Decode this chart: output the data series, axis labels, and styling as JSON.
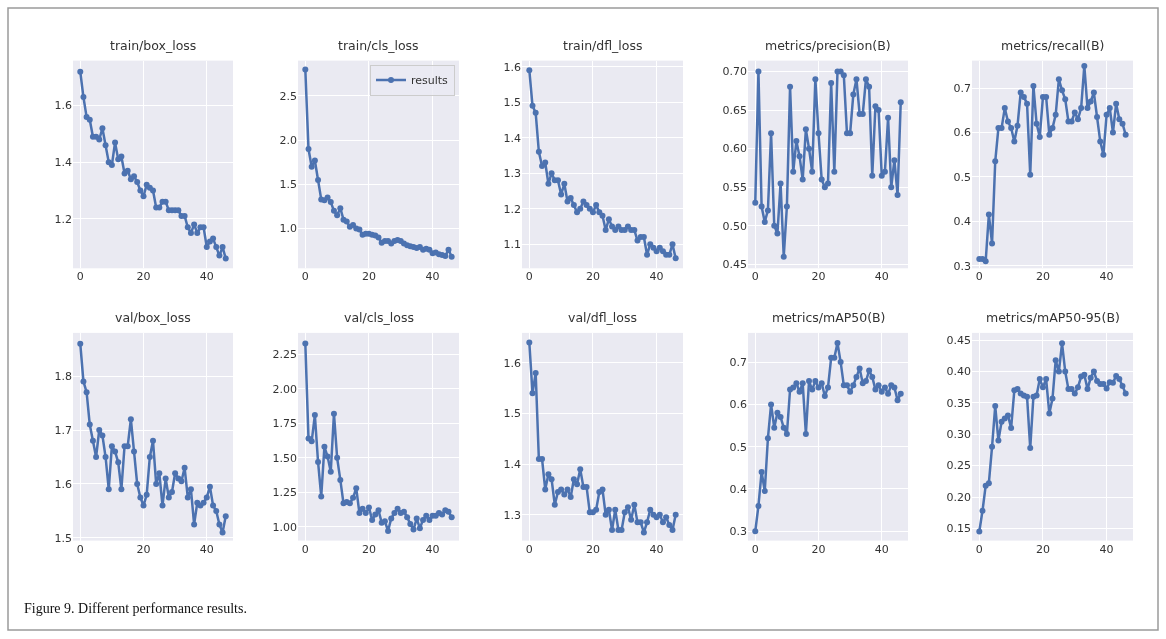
{
  "chart_data": [
    {
      "type": "line",
      "title": "train/box_loss",
      "x": [
        0,
        1,
        2,
        3,
        4,
        5,
        6,
        7,
        8,
        9,
        10,
        11,
        12,
        13,
        14,
        15,
        16,
        17,
        18,
        19,
        20,
        21,
        22,
        23,
        24,
        25,
        26,
        27,
        28,
        29,
        30,
        31,
        32,
        33,
        34,
        35,
        36,
        37,
        38,
        39,
        40,
        41,
        42,
        43,
        44,
        45,
        46
      ],
      "series": [
        {
          "color": "#4c72b0",
          "values": [
            1.72,
            1.63,
            1.56,
            1.55,
            1.49,
            1.49,
            1.48,
            1.52,
            1.46,
            1.4,
            1.39,
            1.47,
            1.41,
            1.42,
            1.36,
            1.37,
            1.34,
            1.35,
            1.33,
            1.3,
            1.28,
            1.32,
            1.31,
            1.3,
            1.24,
            1.24,
            1.26,
            1.26,
            1.23,
            1.23,
            1.23,
            1.23,
            1.21,
            1.21,
            1.17,
            1.15,
            1.18,
            1.15,
            1.17,
            1.17,
            1.1,
            1.12,
            1.13,
            1.1,
            1.07,
            1.1,
            1.06
          ]
        }
      ],
      "xlim": [
        -2.3,
        48.3
      ],
      "ylim": [
        1.025,
        1.759
      ],
      "xticks": [
        0,
        20,
        40
      ],
      "yticks": [
        1.2,
        1.4,
        1.6
      ],
      "grid": true,
      "marker": "circle",
      "annotations": [
        "Figure 9. Different performance results."
      ]
    },
    {
      "type": "line",
      "title": "train/cls_loss",
      "x": [
        0,
        1,
        2,
        3,
        4,
        5,
        6,
        7,
        8,
        9,
        10,
        11,
        12,
        13,
        14,
        15,
        16,
        17,
        18,
        19,
        20,
        21,
        22,
        23,
        24,
        25,
        26,
        27,
        28,
        29,
        30,
        31,
        32,
        33,
        34,
        35,
        36,
        37,
        38,
        39,
        40,
        41,
        42,
        43,
        44,
        45,
        46
      ],
      "series": [
        {
          "name": "results",
          "color": "#4c72b0",
          "values": [
            2.8,
            1.9,
            1.7,
            1.77,
            1.55,
            1.33,
            1.32,
            1.35,
            1.3,
            1.2,
            1.15,
            1.23,
            1.1,
            1.08,
            1.02,
            1.04,
            1.0,
            0.99,
            0.93,
            0.94,
            0.94,
            0.93,
            0.92,
            0.9,
            0.84,
            0.86,
            0.86,
            0.83,
            0.86,
            0.87,
            0.86,
            0.83,
            0.81,
            0.8,
            0.79,
            0.78,
            0.79,
            0.76,
            0.77,
            0.76,
            0.72,
            0.73,
            0.71,
            0.7,
            0.69,
            0.76,
            0.68
          ]
        }
      ],
      "xlim": [
        -2.3,
        48.3
      ],
      "ylim": [
        0.55,
        2.9
      ],
      "xticks": [
        0,
        20,
        40
      ],
      "yticks": [
        {
          "value": 1,
          "label": "1.0"
        },
        1.5,
        {
          "value": 2,
          "label": "2.0"
        },
        2.5
      ],
      "grid": true,
      "marker": "circle",
      "legend": "top right"
    },
    {
      "type": "line",
      "title": "train/dfl_loss",
      "x": [
        0,
        1,
        2,
        3,
        4,
        5,
        6,
        7,
        8,
        9,
        10,
        11,
        12,
        13,
        14,
        15,
        16,
        17,
        18,
        19,
        20,
        21,
        22,
        23,
        24,
        25,
        26,
        27,
        28,
        29,
        30,
        31,
        32,
        33,
        34,
        35,
        36,
        37,
        38,
        39,
        40,
        41,
        42,
        43,
        44,
        45,
        46
      ],
      "series": [
        {
          "color": "#4c72b0",
          "values": [
            1.59,
            1.49,
            1.47,
            1.36,
            1.32,
            1.33,
            1.27,
            1.3,
            1.28,
            1.28,
            1.24,
            1.27,
            1.22,
            1.23,
            1.21,
            1.19,
            1.2,
            1.22,
            1.21,
            1.2,
            1.19,
            1.21,
            1.19,
            1.18,
            1.14,
            1.17,
            1.15,
            1.14,
            1.15,
            1.14,
            1.14,
            1.15,
            1.14,
            1.14,
            1.11,
            1.12,
            1.12,
            1.07,
            1.1,
            1.09,
            1.08,
            1.09,
            1.08,
            1.07,
            1.07,
            1.1,
            1.06
          ]
        }
      ],
      "xlim": [
        -2.3,
        48.3
      ],
      "ylim": [
        1.032,
        1.617
      ],
      "xticks": [
        0,
        20,
        40
      ],
      "yticks": [
        1.1,
        1.2,
        1.3,
        1.4,
        1.5,
        1.6
      ],
      "grid": true,
      "marker": "circle"
    },
    {
      "type": "line",
      "title": "metrics/precision(B)",
      "x": [
        0,
        1,
        2,
        3,
        4,
        5,
        6,
        7,
        8,
        9,
        10,
        11,
        12,
        13,
        14,
        15,
        16,
        17,
        18,
        19,
        20,
        21,
        22,
        23,
        24,
        25,
        26,
        27,
        28,
        29,
        30,
        31,
        32,
        33,
        34,
        35,
        36,
        37,
        38,
        39,
        40,
        41,
        42,
        43,
        44,
        45,
        46
      ],
      "series": [
        {
          "color": "#4c72b0",
          "values": [
            0.53,
            0.7,
            0.525,
            0.505,
            0.52,
            0.62,
            0.5,
            0.49,
            0.555,
            0.46,
            0.525,
            0.68,
            0.57,
            0.61,
            0.59,
            0.56,
            0.625,
            0.6,
            0.57,
            0.69,
            0.62,
            0.56,
            0.55,
            0.555,
            0.685,
            0.57,
            0.7,
            0.7,
            0.695,
            0.62,
            0.62,
            0.67,
            0.69,
            0.645,
            0.645,
            0.69,
            0.68,
            0.565,
            0.655,
            0.65,
            0.565,
            0.57,
            0.64,
            0.55,
            0.585,
            0.54,
            0.66
          ]
        }
      ],
      "xlim": [
        -2.3,
        48.3
      ],
      "ylim": [
        0.445,
        0.714
      ],
      "xticks": [
        0,
        20,
        40
      ],
      "yticks": [
        0.45,
        {
          "value": 0.5,
          "label": "0.50"
        },
        0.55,
        {
          "value": 0.6,
          "label": "0.60"
        },
        0.65,
        {
          "value": 0.7,
          "label": "0.70"
        }
      ],
      "grid": true,
      "marker": "circle"
    },
    {
      "type": "line",
      "title": "metrics/recall(B)",
      "x": [
        0,
        1,
        2,
        3,
        4,
        5,
        6,
        7,
        8,
        9,
        10,
        11,
        12,
        13,
        14,
        15,
        16,
        17,
        18,
        19,
        20,
        21,
        22,
        23,
        24,
        25,
        26,
        27,
        28,
        29,
        30,
        31,
        32,
        33,
        34,
        35,
        36,
        37,
        38,
        39,
        40,
        41,
        42,
        43,
        44,
        45,
        46
      ],
      "series": [
        {
          "color": "#4c72b0",
          "values": [
            0.315,
            0.315,
            0.31,
            0.415,
            0.35,
            0.535,
            0.61,
            0.61,
            0.655,
            0.625,
            0.61,
            0.58,
            0.615,
            0.69,
            0.68,
            0.665,
            0.505,
            0.705,
            0.62,
            0.59,
            0.68,
            0.68,
            0.595,
            0.61,
            0.64,
            0.72,
            0.695,
            0.675,
            0.625,
            0.625,
            0.645,
            0.63,
            0.655,
            0.75,
            0.655,
            0.67,
            0.69,
            0.635,
            0.58,
            0.55,
            0.64,
            0.655,
            0.6,
            0.665,
            0.63,
            0.62,
            0.595
          ]
        }
      ],
      "xlim": [
        -2.3,
        48.3
      ],
      "ylim": [
        0.294,
        0.762
      ],
      "xticks": [
        0,
        20,
        40
      ],
      "yticks": [
        0.3,
        0.4,
        0.5,
        0.6,
        0.7
      ],
      "grid": true,
      "marker": "circle"
    },
    {
      "type": "line",
      "title": "val/box_loss",
      "x": [
        0,
        1,
        2,
        3,
        4,
        5,
        6,
        7,
        8,
        9,
        10,
        11,
        12,
        13,
        14,
        15,
        16,
        17,
        18,
        19,
        20,
        21,
        22,
        23,
        24,
        25,
        26,
        27,
        28,
        29,
        30,
        31,
        32,
        33,
        34,
        35,
        36,
        37,
        38,
        39,
        40,
        41,
        42,
        43,
        44,
        45,
        46
      ],
      "series": [
        {
          "color": "#4c72b0",
          "values": [
            1.86,
            1.79,
            1.77,
            1.71,
            1.68,
            1.65,
            1.7,
            1.69,
            1.65,
            1.59,
            1.67,
            1.66,
            1.64,
            1.59,
            1.67,
            1.67,
            1.72,
            1.66,
            1.6,
            1.575,
            1.56,
            1.58,
            1.65,
            1.68,
            1.6,
            1.62,
            1.56,
            1.61,
            1.575,
            1.585,
            1.62,
            1.61,
            1.605,
            1.63,
            1.575,
            1.59,
            1.525,
            1.565,
            1.56,
            1.565,
            1.575,
            1.595,
            1.56,
            1.55,
            1.525,
            1.51,
            1.54
          ]
        }
      ],
      "xlim": [
        -2.3,
        48.3
      ],
      "ylim": [
        1.495,
        1.88
      ],
      "xticks": [
        0,
        20,
        40
      ],
      "yticks": [
        1.5,
        1.6,
        1.7,
        1.8
      ],
      "grid": true,
      "marker": "circle"
    },
    {
      "type": "line",
      "title": "val/cls_loss",
      "x": [
        0,
        1,
        2,
        3,
        4,
        5,
        6,
        7,
        8,
        9,
        10,
        11,
        12,
        13,
        14,
        15,
        16,
        17,
        18,
        19,
        20,
        21,
        22,
        23,
        24,
        25,
        26,
        27,
        28,
        29,
        30,
        31,
        32,
        33,
        34,
        35,
        36,
        37,
        38,
        39,
        40,
        41,
        42,
        43,
        44,
        45,
        46
      ],
      "series": [
        {
          "color": "#4c72b0",
          "values": [
            2.33,
            1.64,
            1.62,
            1.81,
            1.47,
            1.22,
            1.58,
            1.51,
            1.4,
            1.82,
            1.5,
            1.34,
            1.17,
            1.18,
            1.17,
            1.21,
            1.28,
            1.1,
            1.13,
            1.1,
            1.14,
            1.05,
            1.09,
            1.12,
            1.03,
            1.04,
            0.97,
            1.06,
            1.1,
            1.13,
            1.1,
            1.11,
            1.07,
            1.02,
            0.98,
            1.06,
            0.99,
            1.05,
            1.08,
            1.05,
            1.08,
            1.08,
            1.1,
            1.09,
            1.12,
            1.11,
            1.07
          ]
        }
      ],
      "xlim": [
        -2.3,
        48.3
      ],
      "ylim": [
        0.9,
        2.406
      ],
      "xticks": [
        0,
        20,
        40
      ],
      "yticks": [
        {
          "value": 1,
          "label": "1.00"
        },
        1.25,
        {
          "value": 1.5,
          "label": "1.50"
        },
        1.75,
        {
          "value": 2,
          "label": "2.00"
        },
        2.25
      ],
      "grid": true,
      "marker": "circle"
    },
    {
      "type": "line",
      "title": "val/dfl_loss",
      "x": [
        0,
        1,
        2,
        3,
        4,
        5,
        6,
        7,
        8,
        9,
        10,
        11,
        12,
        13,
        14,
        15,
        16,
        17,
        18,
        19,
        20,
        21,
        22,
        23,
        24,
        25,
        26,
        27,
        28,
        29,
        30,
        31,
        32,
        33,
        34,
        35,
        36,
        37,
        38,
        39,
        40,
        41,
        42,
        43,
        44,
        45,
        46
      ],
      "series": [
        {
          "color": "#4c72b0",
          "values": [
            1.64,
            1.54,
            1.58,
            1.41,
            1.41,
            1.35,
            1.38,
            1.37,
            1.32,
            1.345,
            1.35,
            1.34,
            1.35,
            1.335,
            1.37,
            1.36,
            1.39,
            1.355,
            1.355,
            1.305,
            1.305,
            1.31,
            1.345,
            1.35,
            1.3,
            1.31,
            1.27,
            1.31,
            1.27,
            1.27,
            1.305,
            1.315,
            1.29,
            1.32,
            1.285,
            1.285,
            1.265,
            1.285,
            1.31,
            1.3,
            1.295,
            1.3,
            1.285,
            1.295,
            1.28,
            1.27,
            1.3
          ]
        }
      ],
      "xlim": [
        -2.3,
        48.3
      ],
      "ylim": [
        1.249,
        1.659
      ],
      "xticks": [
        0,
        20,
        40
      ],
      "yticks": [
        1.3,
        1.4,
        1.5,
        1.6
      ],
      "grid": true,
      "marker": "circle"
    },
    {
      "type": "line",
      "title": "metrics/mAP50(B)",
      "x": [
        0,
        1,
        2,
        3,
        4,
        5,
        6,
        7,
        8,
        9,
        10,
        11,
        12,
        13,
        14,
        15,
        16,
        17,
        18,
        19,
        20,
        21,
        22,
        23,
        24,
        25,
        26,
        27,
        28,
        29,
        30,
        31,
        32,
        33,
        34,
        35,
        36,
        37,
        38,
        39,
        40,
        41,
        42,
        43,
        44,
        45,
        46
      ],
      "series": [
        {
          "color": "#4c72b0",
          "values": [
            0.3,
            0.36,
            0.44,
            0.395,
            0.52,
            0.6,
            0.545,
            0.58,
            0.57,
            0.545,
            0.53,
            0.635,
            0.64,
            0.65,
            0.63,
            0.65,
            0.53,
            0.655,
            0.635,
            0.655,
            0.64,
            0.65,
            0.62,
            0.64,
            0.71,
            0.71,
            0.745,
            0.7,
            0.645,
            0.645,
            0.63,
            0.645,
            0.665,
            0.685,
            0.65,
            0.655,
            0.68,
            0.665,
            0.635,
            0.645,
            0.63,
            0.64,
            0.625,
            0.645,
            0.64,
            0.61,
            0.625
          ]
        }
      ],
      "xlim": [
        -2.3,
        48.3
      ],
      "ylim": [
        0.278,
        0.769
      ],
      "xticks": [
        0,
        20,
        40
      ],
      "yticks": [
        0.3,
        0.4,
        0.5,
        0.6,
        0.7
      ],
      "grid": true,
      "marker": "circle"
    },
    {
      "type": "line",
      "title": "metrics/mAP50-95(B)",
      "x": [
        0,
        1,
        2,
        3,
        4,
        5,
        6,
        7,
        8,
        9,
        10,
        11,
        12,
        13,
        14,
        15,
        16,
        17,
        18,
        19,
        20,
        21,
        22,
        23,
        24,
        25,
        26,
        27,
        28,
        29,
        30,
        31,
        32,
        33,
        34,
        35,
        36,
        37,
        38,
        39,
        40,
        41,
        42,
        43,
        44,
        45,
        46
      ],
      "series": [
        {
          "color": "#4c72b0",
          "values": [
            0.145,
            0.178,
            0.218,
            0.222,
            0.28,
            0.345,
            0.29,
            0.32,
            0.325,
            0.33,
            0.31,
            0.37,
            0.372,
            0.365,
            0.362,
            0.36,
            0.278,
            0.36,
            0.362,
            0.388,
            0.375,
            0.388,
            0.333,
            0.357,
            0.418,
            0.4,
            0.445,
            0.4,
            0.372,
            0.372,
            0.365,
            0.375,
            0.392,
            0.395,
            0.372,
            0.39,
            0.4,
            0.385,
            0.38,
            0.38,
            0.373,
            0.383,
            0.382,
            0.393,
            0.388,
            0.377,
            0.365
          ]
        }
      ],
      "xlim": [
        -2.3,
        48.3
      ],
      "ylim": [
        0.1305,
        0.4616
      ],
      "xticks": [
        0,
        20,
        40
      ],
      "yticks": [
        0.15,
        {
          "value": 0.2,
          "label": "0.20"
        },
        0.25,
        {
          "value": 0.3,
          "label": "0.30"
        },
        0.35,
        {
          "value": 0.4,
          "label": "0.40"
        },
        0.45
      ],
      "grid": true,
      "marker": "circle"
    }
  ]
}
